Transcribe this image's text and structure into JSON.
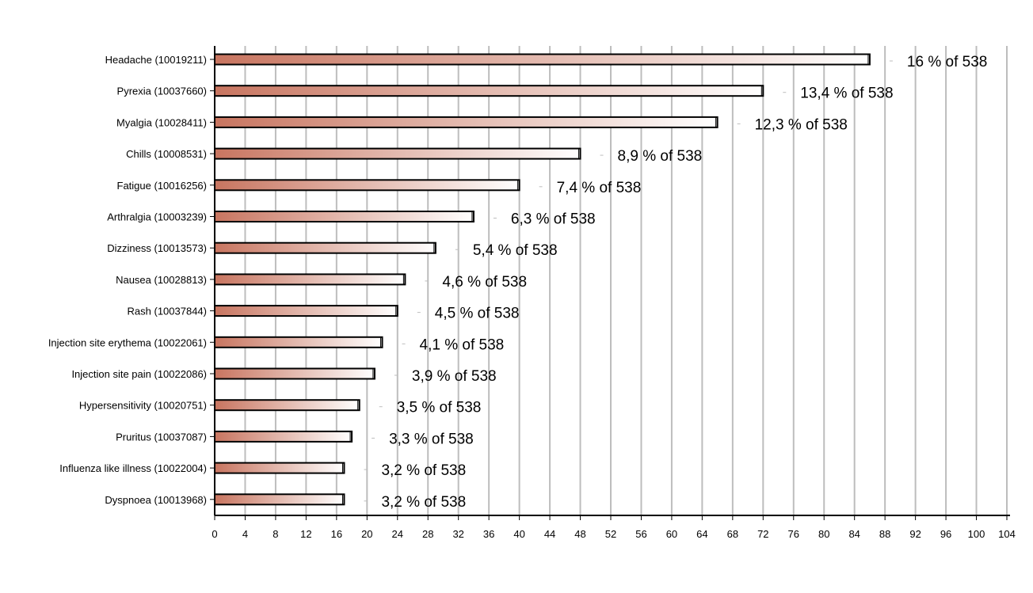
{
  "chart_data": {
    "type": "bar",
    "orientation": "horizontal",
    "title": "",
    "xlabel": "",
    "ylabel": "",
    "xlim": [
      0,
      104
    ],
    "x_ticks": [
      0,
      4,
      8,
      12,
      16,
      20,
      24,
      28,
      32,
      36,
      40,
      44,
      48,
      52,
      56,
      60,
      64,
      68,
      72,
      76,
      80,
      84,
      88,
      92,
      96,
      100,
      104
    ],
    "grid": "vertical",
    "bar_colors": {
      "start": "#c87560",
      "end": "#ffffff",
      "outline": "#000000"
    },
    "gridline_color": "#bdbdbd",
    "categories": [
      "Headache (10019211)",
      "Pyrexia (10037660)",
      "Myalgia (10028411)",
      "Chills (10008531)",
      "Fatigue (10016256)",
      "Arthralgia (10003239)",
      "Dizziness (10013573)",
      "Nausea (10028813)",
      "Rash (10037844)",
      "Injection site erythema (10022061)",
      "Injection site pain (10022086)",
      "Hypersensitivity (10020751)",
      "Pruritus (10037087)",
      "Influenza like illness (10022004)",
      "Dyspnoea (10013968)"
    ],
    "values": [
      86,
      72,
      66,
      48,
      40,
      34,
      29,
      25,
      24,
      22,
      21,
      19,
      18,
      17,
      17
    ],
    "data_labels": [
      "16 % of 538",
      "13,4 % of 538",
      "12,3 % of 538",
      "8,9 % of 538",
      "7,4 % of 538",
      "6,3 % of 538",
      "5,4 % of 538",
      "4,6 % of 538",
      "4,5 % of 538",
      "4,1 % of 538",
      "3,9 % of 538",
      "3,5 % of 538",
      "3,3 % of 538",
      "3,2 % of 538",
      "3,2 % of 538"
    ]
  }
}
